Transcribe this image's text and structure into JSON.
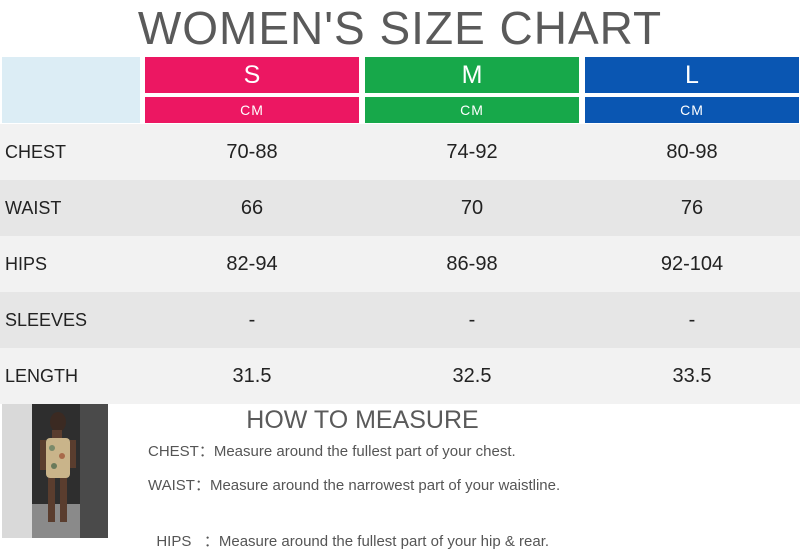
{
  "title": "WOMEN'S SIZE CHART",
  "colors": {
    "s_header": "#ec1762",
    "m_header": "#17a84a",
    "l_header": "#0a56b2",
    "corner": "#dcedf5"
  },
  "sizes": [
    {
      "label": "S",
      "unit": "CM"
    },
    {
      "label": "M",
      "unit": "CM"
    },
    {
      "label": "L",
      "unit": "CM"
    }
  ],
  "rows": [
    {
      "label": "CHEST",
      "values": [
        "70-88",
        "74-92",
        "80-98"
      ]
    },
    {
      "label": "WAIST",
      "values": [
        "66",
        "70",
        "76"
      ]
    },
    {
      "label": "HIPS",
      "values": [
        "82-94",
        "86-98",
        "92-104"
      ]
    },
    {
      "label": "SLEEVES",
      "values": [
        "-",
        "-",
        "-"
      ]
    },
    {
      "label": "LENGTH",
      "values": [
        "31.5",
        "32.5",
        "33.5"
      ]
    }
  ],
  "measure": {
    "title": "HOW TO MEASURE",
    "tips": [
      {
        "key": "CHEST：",
        "text": "Measure around the fullest part of your chest."
      },
      {
        "key": "WAIST：",
        "text": "Measure around the narrowest part of your waistline."
      },
      {
        "key": "HIPS   ：",
        "text": "Measure around the fullest part of your hip & rear."
      }
    ]
  },
  "photo_icon": "model-photo"
}
